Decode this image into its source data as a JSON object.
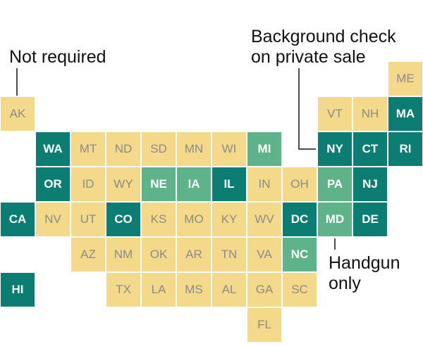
{
  "annotations": {
    "not_required": "Not required",
    "background_check_line1": "Background check",
    "background_check_line2": "on private sale",
    "handgun_line1": "Handgun",
    "handgun_line2": "only"
  },
  "colors": {
    "not_required": "#f5d98b",
    "background_check": "#0b7d73",
    "handgun_only": "#5fb38a"
  },
  "states": [
    {
      "abbr": "ME",
      "status": "not_required",
      "col": 11,
      "row": 0
    },
    {
      "abbr": "AK",
      "status": "not_required",
      "col": 0,
      "row": 1
    },
    {
      "abbr": "VT",
      "status": "not_required",
      "col": 9,
      "row": 1
    },
    {
      "abbr": "NH",
      "status": "not_required",
      "col": 10,
      "row": 1
    },
    {
      "abbr": "MA",
      "status": "background_check",
      "col": 11,
      "row": 1
    },
    {
      "abbr": "WA",
      "status": "background_check",
      "col": 1,
      "row": 2
    },
    {
      "abbr": "MT",
      "status": "not_required",
      "col": 2,
      "row": 2
    },
    {
      "abbr": "ND",
      "status": "not_required",
      "col": 3,
      "row": 2
    },
    {
      "abbr": "SD",
      "status": "not_required",
      "col": 4,
      "row": 2
    },
    {
      "abbr": "MN",
      "status": "not_required",
      "col": 5,
      "row": 2
    },
    {
      "abbr": "WI",
      "status": "not_required",
      "col": 6,
      "row": 2
    },
    {
      "abbr": "MI",
      "status": "handgun_only",
      "col": 7,
      "row": 2
    },
    {
      "abbr": "NY",
      "status": "background_check",
      "col": 9,
      "row": 2
    },
    {
      "abbr": "CT",
      "status": "background_check",
      "col": 10,
      "row": 2
    },
    {
      "abbr": "RI",
      "status": "background_check",
      "col": 11,
      "row": 2
    },
    {
      "abbr": "OR",
      "status": "background_check",
      "col": 1,
      "row": 3
    },
    {
      "abbr": "ID",
      "status": "not_required",
      "col": 2,
      "row": 3
    },
    {
      "abbr": "WY",
      "status": "not_required",
      "col": 3,
      "row": 3
    },
    {
      "abbr": "NE",
      "status": "handgun_only",
      "col": 4,
      "row": 3
    },
    {
      "abbr": "IA",
      "status": "handgun_only",
      "col": 5,
      "row": 3
    },
    {
      "abbr": "IL",
      "status": "background_check",
      "col": 6,
      "row": 3
    },
    {
      "abbr": "IN",
      "status": "not_required",
      "col": 7,
      "row": 3
    },
    {
      "abbr": "OH",
      "status": "not_required",
      "col": 8,
      "row": 3
    },
    {
      "abbr": "PA",
      "status": "handgun_only",
      "col": 9,
      "row": 3
    },
    {
      "abbr": "NJ",
      "status": "background_check",
      "col": 10,
      "row": 3
    },
    {
      "abbr": "CA",
      "status": "background_check",
      "col": 0,
      "row": 4
    },
    {
      "abbr": "NV",
      "status": "not_required",
      "col": 1,
      "row": 4
    },
    {
      "abbr": "UT",
      "status": "not_required",
      "col": 2,
      "row": 4
    },
    {
      "abbr": "CO",
      "status": "background_check",
      "col": 3,
      "row": 4
    },
    {
      "abbr": "KS",
      "status": "not_required",
      "col": 4,
      "row": 4
    },
    {
      "abbr": "MO",
      "status": "not_required",
      "col": 5,
      "row": 4
    },
    {
      "abbr": "KY",
      "status": "not_required",
      "col": 6,
      "row": 4
    },
    {
      "abbr": "WV",
      "status": "not_required",
      "col": 7,
      "row": 4
    },
    {
      "abbr": "DC",
      "status": "background_check",
      "col": 8,
      "row": 4
    },
    {
      "abbr": "MD",
      "status": "handgun_only",
      "col": 9,
      "row": 4
    },
    {
      "abbr": "DE",
      "status": "background_check",
      "col": 10,
      "row": 4
    },
    {
      "abbr": "AZ",
      "status": "not_required",
      "col": 2,
      "row": 5
    },
    {
      "abbr": "NM",
      "status": "not_required",
      "col": 3,
      "row": 5
    },
    {
      "abbr": "OK",
      "status": "not_required",
      "col": 4,
      "row": 5
    },
    {
      "abbr": "AR",
      "status": "not_required",
      "col": 5,
      "row": 5
    },
    {
      "abbr": "TN",
      "status": "not_required",
      "col": 6,
      "row": 5
    },
    {
      "abbr": "VA",
      "status": "not_required",
      "col": 7,
      "row": 5
    },
    {
      "abbr": "NC",
      "status": "handgun_only",
      "col": 8,
      "row": 5
    },
    {
      "abbr": "HI",
      "status": "background_check",
      "col": 0,
      "row": 6
    },
    {
      "abbr": "TX",
      "status": "not_required",
      "col": 3,
      "row": 6
    },
    {
      "abbr": "LA",
      "status": "not_required",
      "col": 4,
      "row": 6
    },
    {
      "abbr": "MS",
      "status": "not_required",
      "col": 5,
      "row": 6
    },
    {
      "abbr": "AL",
      "status": "not_required",
      "col": 6,
      "row": 6
    },
    {
      "abbr": "GA",
      "status": "not_required",
      "col": 7,
      "row": 6
    },
    {
      "abbr": "SC",
      "status": "not_required",
      "col": 8,
      "row": 6
    },
    {
      "abbr": "FL",
      "status": "not_required",
      "col": 7,
      "row": 7
    }
  ]
}
